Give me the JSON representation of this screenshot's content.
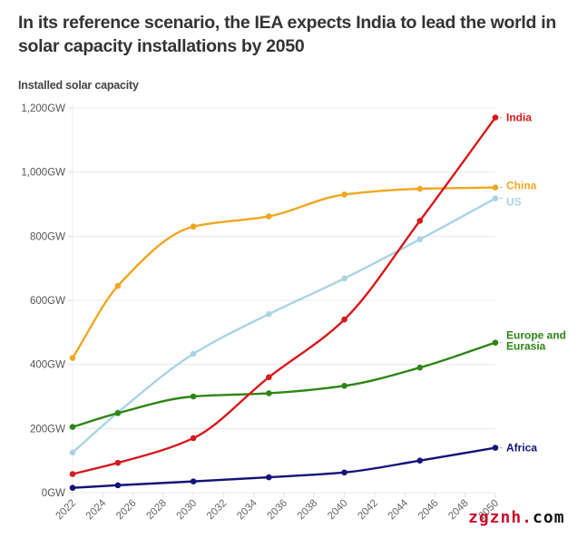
{
  "title": "In its reference scenario, the IEA expects India to lead the world in solar capacity installations by 2050",
  "watermark": {
    "part1": "zgznh.",
    "part2": "com"
  },
  "chart_data": {
    "type": "line",
    "title": "In its reference scenario, the IEA expects India to lead the world in solar capacity installations by 2050",
    "subtitle": "Installed solar capacity",
    "xlabel": "",
    "ylabel": "Installed solar capacity",
    "x": [
      2022,
      2025,
      2030,
      2035,
      2040,
      2045,
      2050
    ],
    "xlim": [
      2022,
      2050
    ],
    "ylim": [
      0,
      1200
    ],
    "x_ticks": [
      "2022",
      "2024",
      "2026",
      "2028",
      "2030",
      "2032",
      "2034",
      "2036",
      "2038",
      "2040",
      "2042",
      "2044",
      "2046",
      "2048",
      "2050"
    ],
    "y_ticks": [
      {
        "value": 0,
        "label": "0GW"
      },
      {
        "value": 200,
        "label": "200GW"
      },
      {
        "value": 400,
        "label": "400GW"
      },
      {
        "value": 600,
        "label": "600GW"
      },
      {
        "value": 800,
        "label": "800GW"
      },
      {
        "value": 1000,
        "label": "1,000GW"
      },
      {
        "value": 1200,
        "label": "1,200GW"
      }
    ],
    "grid": true,
    "legend": "direct labels at line ends (right)",
    "series": [
      {
        "name": "China",
        "label_lines": [
          "China"
        ],
        "color": "#f0a71f",
        "values": [
          420,
          645,
          830,
          862,
          930,
          948,
          952
        ]
      },
      {
        "name": "US",
        "label_lines": [
          "US"
        ],
        "color": "#a9d4e4",
        "values": [
          125,
          250,
          433,
          557,
          668,
          790,
          918
        ]
      },
      {
        "name": "Europe and Eurasia",
        "label_lines": [
          "Europe and",
          "Eurasia"
        ],
        "color": "#2e8515",
        "values": [
          205,
          248,
          300,
          310,
          333,
          390,
          468
        ]
      },
      {
        "name": "India",
        "label_lines": [
          "India"
        ],
        "color": "#d7191c",
        "values": [
          58,
          93,
          170,
          360,
          540,
          848,
          1170
        ]
      },
      {
        "name": "Africa",
        "label_lines": [
          "Africa"
        ],
        "color": "#13137a",
        "values": [
          15,
          23,
          35,
          48,
          63,
          100,
          140
        ]
      }
    ]
  }
}
